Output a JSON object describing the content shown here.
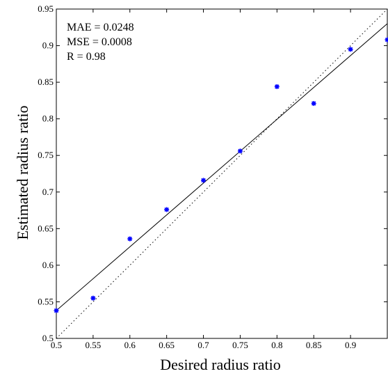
{
  "chart_data": {
    "type": "scatter",
    "xlabel": "Desired radius ratio",
    "ylabel": "Estimated radius ratio",
    "xlim": [
      0.5,
      0.95
    ],
    "ylim": [
      0.5,
      0.95
    ],
    "x_ticks": [
      0.5,
      0.55,
      0.6,
      0.65,
      0.7,
      0.75,
      0.8,
      0.85,
      0.9
    ],
    "y_ticks": [
      0.5,
      0.55,
      0.6,
      0.65,
      0.7,
      0.75,
      0.8,
      0.85,
      0.9,
      0.95
    ],
    "x_tick_labels": [
      "0.5",
      "0.55",
      "0.6",
      "0.65",
      "0.7",
      "0.75",
      "0.8",
      "0.85",
      "0.9"
    ],
    "y_tick_labels": [
      "0.5",
      "0.55",
      "0.6",
      "0.65",
      "0.7",
      "0.75",
      "0.8",
      "0.85",
      "0.9",
      "0.95"
    ],
    "grid": false,
    "series": [
      {
        "type": "scatter",
        "color": "#0000ff",
        "x": [
          0.5,
          0.55,
          0.6,
          0.65,
          0.7,
          0.75,
          0.8,
          0.85,
          0.9,
          0.95
        ],
        "y": [
          0.538,
          0.555,
          0.636,
          0.676,
          0.716,
          0.756,
          0.844,
          0.821,
          0.895,
          0.908
        ]
      }
    ],
    "fit_line": {
      "color": "#000000",
      "style": "solid",
      "x": [
        0.5,
        0.95
      ],
      "y": [
        0.538,
        0.93
      ]
    },
    "identity_line": {
      "color": "#000000",
      "style": "dotted",
      "x": [
        0.5,
        0.95
      ],
      "y": [
        0.5,
        0.95
      ]
    },
    "annotations": [
      "MAE = 0.0248",
      "MSE = 0.0008",
      "R = 0.98"
    ]
  }
}
